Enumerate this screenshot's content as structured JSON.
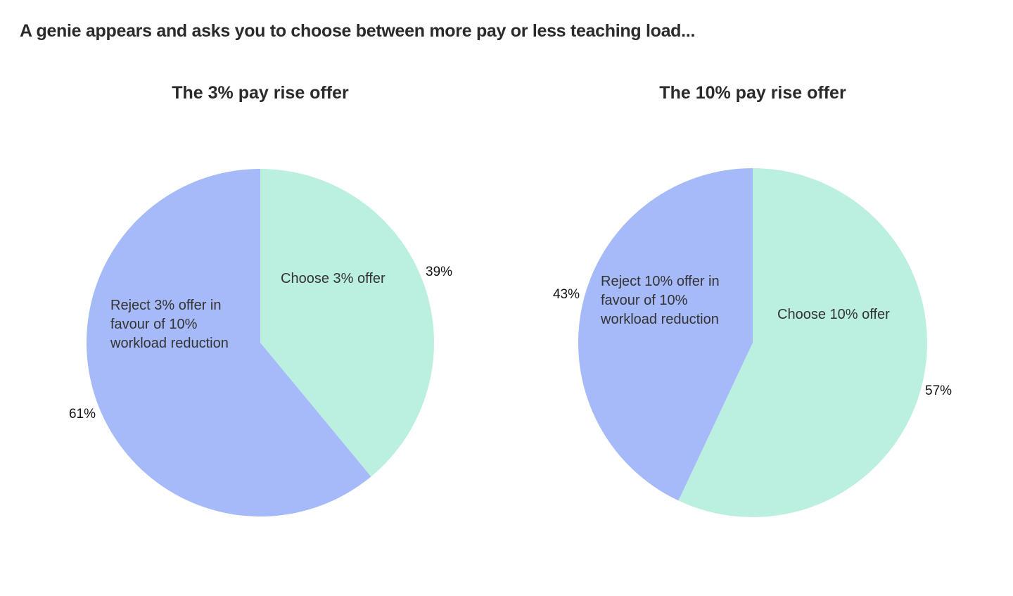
{
  "page": {
    "title": "A genie appears and asks you to choose between more pay or less teaching load..."
  },
  "colors": {
    "choose": "#bbefdf",
    "reject": "#a6b9f8"
  },
  "chart_data": [
    {
      "type": "pie",
      "title": "The 3% pay rise offer",
      "slices": [
        {
          "label": "Choose 3% offer",
          "value": 39,
          "value_label": "39%",
          "color": "#bbefdf"
        },
        {
          "label": "Reject 3% offer in favour of 10% workload reduction",
          "label_lines": [
            "Reject 3% offer in",
            "favour of 10%",
            "workload reduction"
          ],
          "value": 61,
          "value_label": "61%",
          "color": "#a6b9f8"
        }
      ]
    },
    {
      "type": "pie",
      "title": "The 10% pay rise offer",
      "slices": [
        {
          "label": "Choose 10% offer",
          "value": 57,
          "value_label": "57%",
          "color": "#bbefdf"
        },
        {
          "label": "Reject 10% offer in favour of 10% workload reduction",
          "label_lines": [
            "Reject 10% offer in",
            "favour of 10%",
            "workload reduction"
          ],
          "value": 43,
          "value_label": "43%",
          "color": "#a6b9f8"
        }
      ]
    }
  ]
}
